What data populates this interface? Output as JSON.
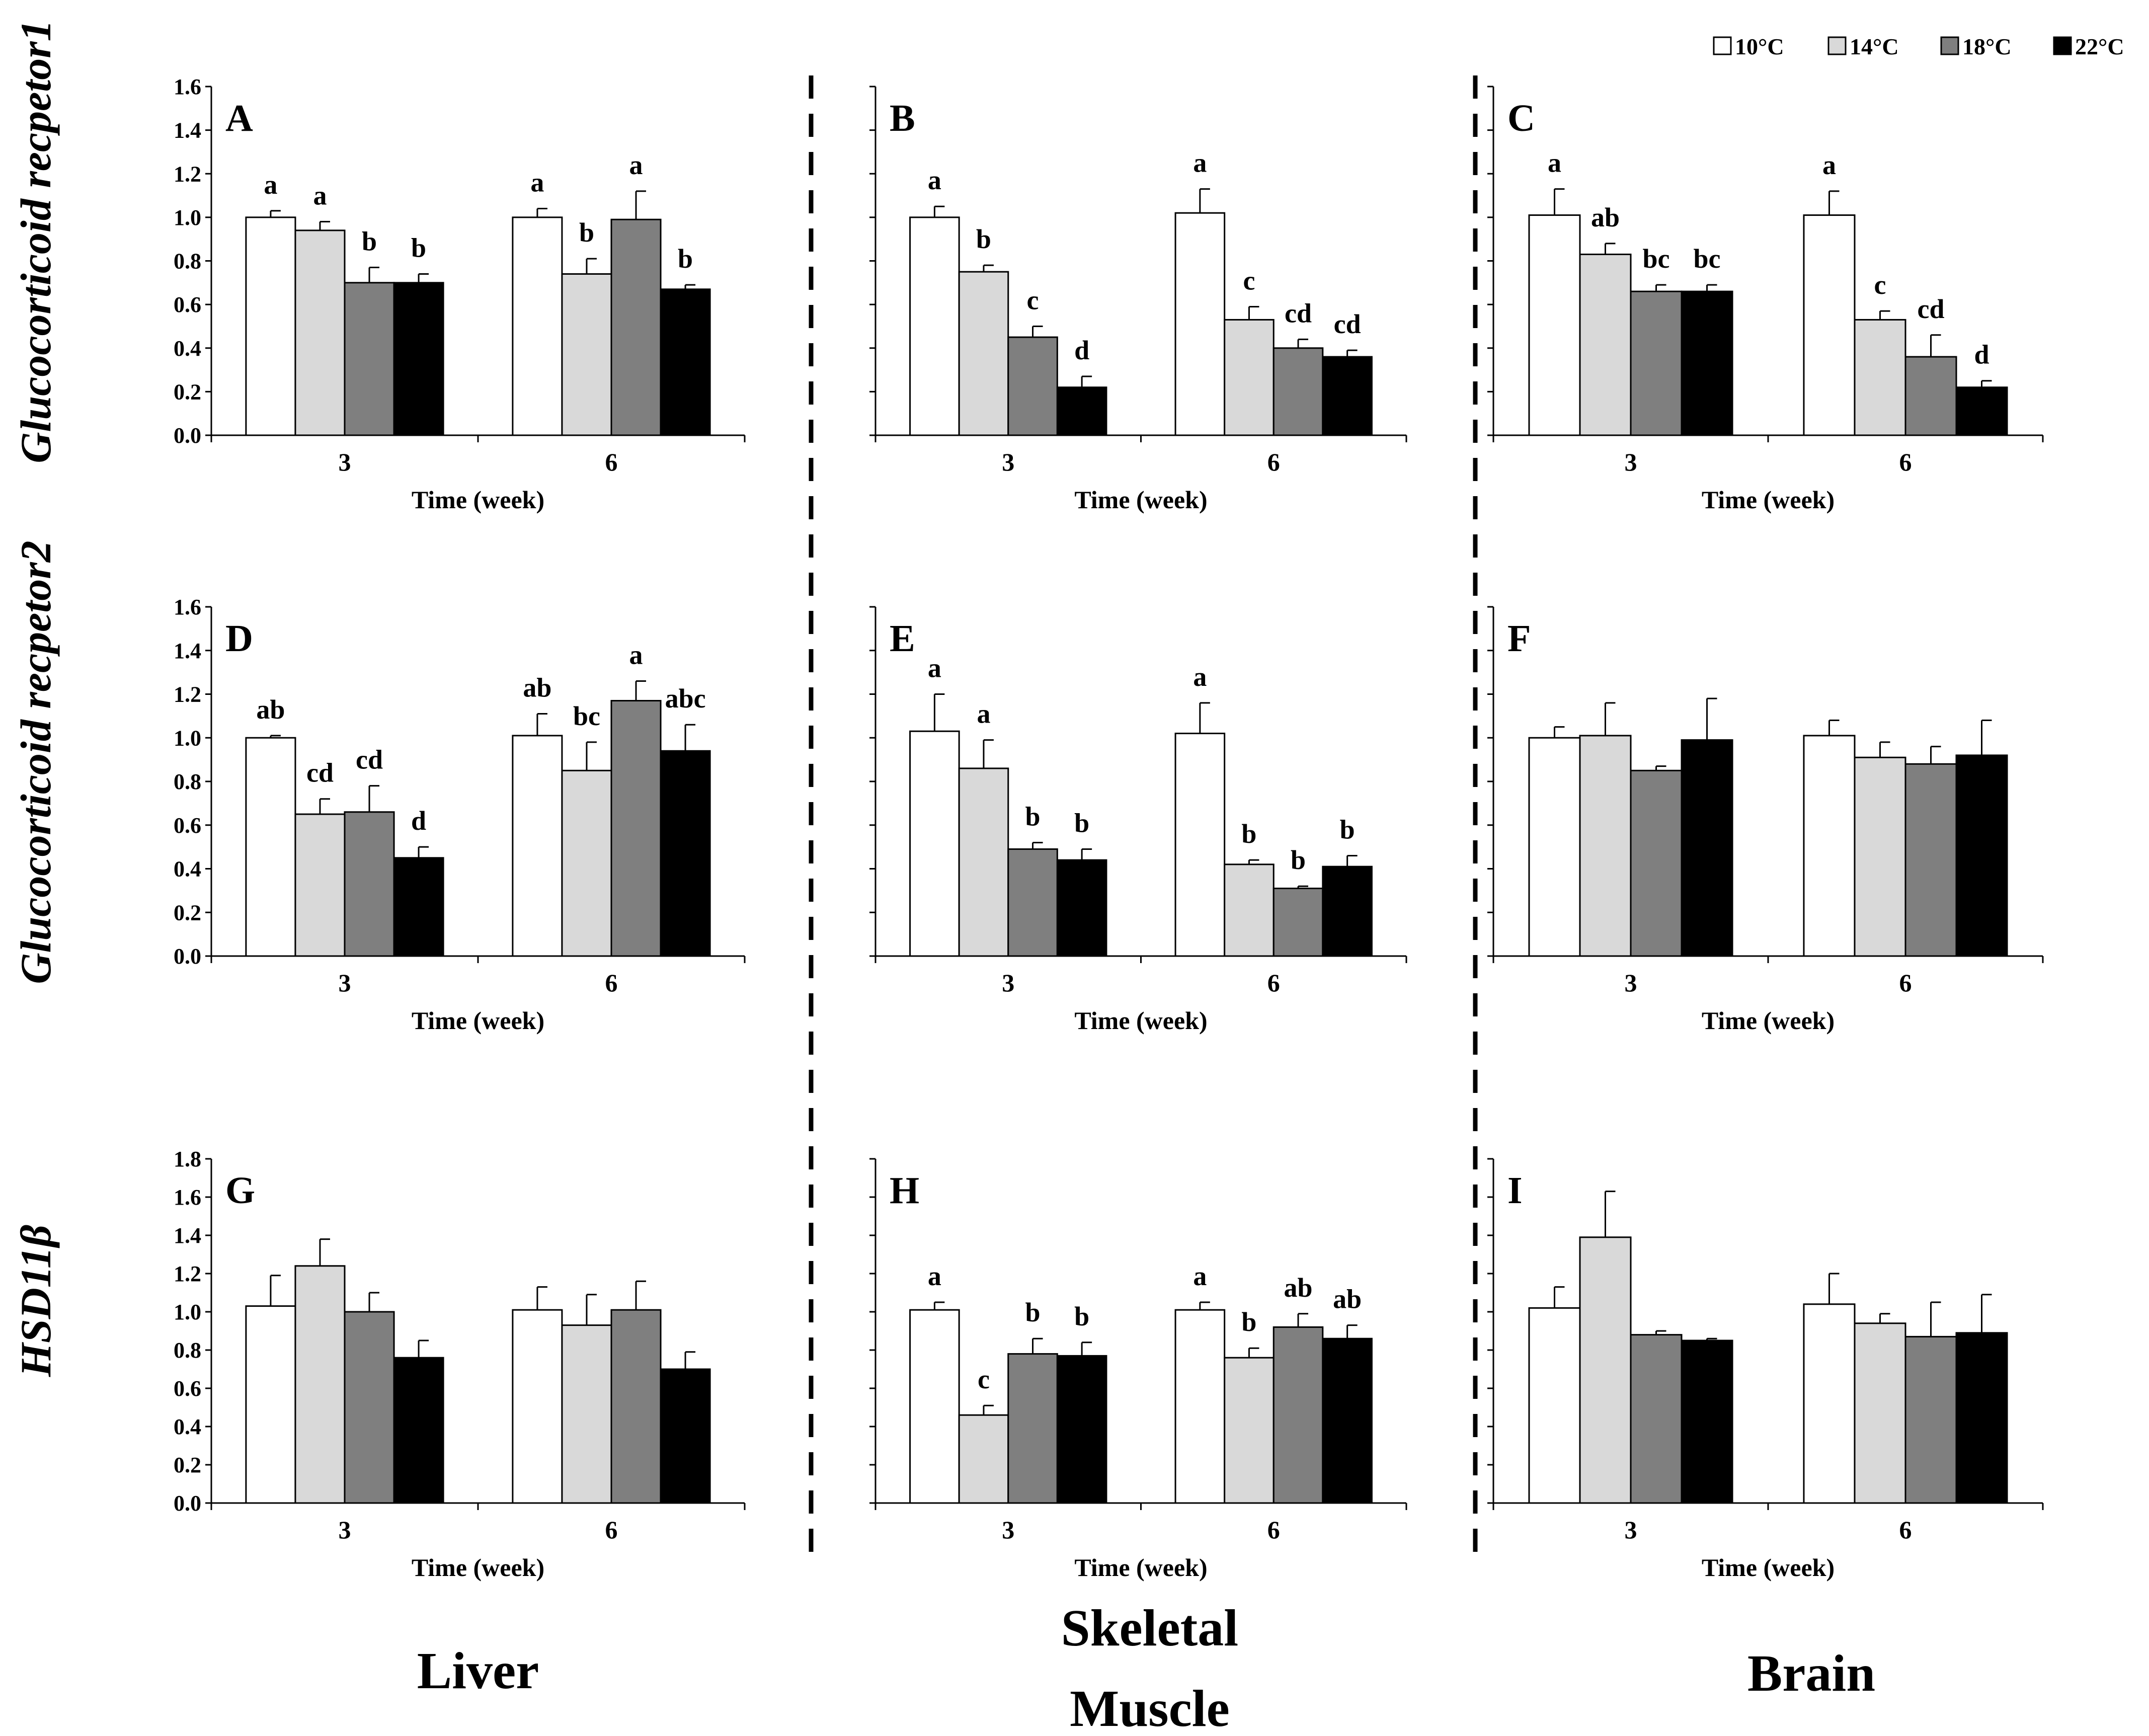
{
  "legend": {
    "items": [
      {
        "label": "10°C",
        "color": "#ffffff"
      },
      {
        "label": "14°C",
        "color": "#d9d9d9"
      },
      {
        "label": "18°C",
        "color": "#7f7f7f"
      },
      {
        "label": "22°C",
        "color": "#000000"
      }
    ]
  },
  "row_labels": [
    "Glucocorticoid recpetor1",
    "Glucocorticoid recpetor2",
    "HSD11β"
  ],
  "tissues": [
    "Liver",
    "Skeletal",
    "Muscle",
    "Brain"
  ],
  "chart_data": [
    {
      "type": "bar",
      "panel": "A",
      "title": "A",
      "xlabel": "Time (week)",
      "ylabel": "Glucocorticoid recpetor1",
      "categories": [
        "3",
        "6"
      ],
      "ylim": [
        0,
        1.6
      ],
      "yticks": [
        "0.0",
        "0.2",
        "0.4",
        "0.6",
        "0.8",
        "1.0",
        "1.2",
        "1.4",
        "1.6"
      ],
      "series": [
        {
          "name": "10°C",
          "values": [
            1.0,
            1.0
          ],
          "errors": [
            0.03,
            0.04
          ],
          "labels": [
            "a",
            "a"
          ]
        },
        {
          "name": "14°C",
          "values": [
            0.94,
            0.74
          ],
          "errors": [
            0.04,
            0.07
          ],
          "labels": [
            "a",
            "b"
          ]
        },
        {
          "name": "18°C",
          "values": [
            0.7,
            0.99
          ],
          "errors": [
            0.07,
            0.13
          ],
          "labels": [
            "b",
            "a"
          ]
        },
        {
          "name": "22°C",
          "values": [
            0.7,
            0.67
          ],
          "errors": [
            0.04,
            0.02
          ],
          "labels": [
            "b",
            "b"
          ]
        }
      ]
    },
    {
      "type": "bar",
      "panel": "B",
      "title": "B",
      "xlabel": "Time (week)",
      "categories": [
        "3",
        "6"
      ],
      "ylim": [
        0,
        1.6
      ],
      "series": [
        {
          "name": "10°C",
          "values": [
            1.0,
            1.02
          ],
          "errors": [
            0.05,
            0.11
          ],
          "labels": [
            "a",
            "a"
          ]
        },
        {
          "name": "14°C",
          "values": [
            0.75,
            0.53
          ],
          "errors": [
            0.03,
            0.06
          ],
          "labels": [
            "b",
            "c"
          ]
        },
        {
          "name": "18°C",
          "values": [
            0.45,
            0.4
          ],
          "errors": [
            0.05,
            0.04
          ],
          "labels": [
            "c",
            "cd"
          ]
        },
        {
          "name": "22°C",
          "values": [
            0.22,
            0.36
          ],
          "errors": [
            0.05,
            0.03
          ],
          "labels": [
            "d",
            "cd"
          ]
        }
      ]
    },
    {
      "type": "bar",
      "panel": "C",
      "title": "C",
      "xlabel": "Time (week)",
      "categories": [
        "3",
        "6"
      ],
      "ylim": [
        0,
        1.6
      ],
      "series": [
        {
          "name": "10°C",
          "values": [
            1.01,
            1.01
          ],
          "errors": [
            0.12,
            0.11
          ],
          "labels": [
            "a",
            "a"
          ]
        },
        {
          "name": "14°C",
          "values": [
            0.83,
            0.53
          ],
          "errors": [
            0.05,
            0.04
          ],
          "labels": [
            "ab",
            "c"
          ]
        },
        {
          "name": "18°C",
          "values": [
            0.66,
            0.36
          ],
          "errors": [
            0.03,
            0.1
          ],
          "labels": [
            "bc",
            "cd"
          ]
        },
        {
          "name": "22°C",
          "values": [
            0.66,
            0.22
          ],
          "errors": [
            0.03,
            0.03
          ],
          "labels": [
            "bc",
            "d"
          ]
        }
      ]
    },
    {
      "type": "bar",
      "panel": "D",
      "title": "D",
      "xlabel": "Time (week)",
      "ylabel": "Glucocorticoid recpetor2",
      "categories": [
        "3",
        "6"
      ],
      "ylim": [
        0,
        1.6
      ],
      "yticks": [
        "0.0",
        "0.2",
        "0.4",
        "0.6",
        "0.8",
        "1.0",
        "1.2",
        "1.4",
        "1.6"
      ],
      "series": [
        {
          "name": "10°C",
          "values": [
            1.0,
            1.01
          ],
          "errors": [
            0.01,
            0.1
          ],
          "labels": [
            "ab",
            "ab"
          ]
        },
        {
          "name": "14°C",
          "values": [
            0.65,
            0.85
          ],
          "errors": [
            0.07,
            0.13
          ],
          "labels": [
            "cd",
            "bc"
          ]
        },
        {
          "name": "18°C",
          "values": [
            0.66,
            1.17
          ],
          "errors": [
            0.12,
            0.09
          ],
          "labels": [
            "cd",
            "a"
          ]
        },
        {
          "name": "22°C",
          "values": [
            0.45,
            0.94
          ],
          "errors": [
            0.05,
            0.12
          ],
          "labels": [
            "d",
            "abc"
          ]
        }
      ]
    },
    {
      "type": "bar",
      "panel": "E",
      "title": "E",
      "xlabel": "Time (week)",
      "categories": [
        "3",
        "6"
      ],
      "ylim": [
        0,
        1.6
      ],
      "series": [
        {
          "name": "10°C",
          "values": [
            1.03,
            1.02
          ],
          "errors": [
            0.17,
            0.14
          ],
          "labels": [
            "a",
            "a"
          ]
        },
        {
          "name": "14°C",
          "values": [
            0.86,
            0.42
          ],
          "errors": [
            0.13,
            0.02
          ],
          "labels": [
            "a",
            "b"
          ]
        },
        {
          "name": "18°C",
          "values": [
            0.49,
            0.31
          ],
          "errors": [
            0.03,
            0.01
          ],
          "labels": [
            "b",
            "b"
          ]
        },
        {
          "name": "22°C",
          "values": [
            0.44,
            0.41
          ],
          "errors": [
            0.05,
            0.05
          ],
          "labels": [
            "b",
            "b"
          ]
        }
      ]
    },
    {
      "type": "bar",
      "panel": "F",
      "title": "F",
      "xlabel": "Time (week)",
      "categories": [
        "3",
        "6"
      ],
      "ylim": [
        0,
        1.6
      ],
      "series": [
        {
          "name": "10°C",
          "values": [
            1.0,
            1.01
          ],
          "errors": [
            0.05,
            0.07
          ],
          "labels": [
            "",
            ""
          ]
        },
        {
          "name": "14°C",
          "values": [
            1.01,
            0.91
          ],
          "errors": [
            0.15,
            0.07
          ],
          "labels": [
            "",
            ""
          ]
        },
        {
          "name": "18°C",
          "values": [
            0.85,
            0.88
          ],
          "errors": [
            0.02,
            0.08
          ],
          "labels": [
            "",
            ""
          ]
        },
        {
          "name": "22°C",
          "values": [
            0.99,
            0.92
          ],
          "errors": [
            0.19,
            0.16
          ],
          "labels": [
            "",
            ""
          ]
        }
      ]
    },
    {
      "type": "bar",
      "panel": "G",
      "title": "G",
      "xlabel": "Time (week)",
      "ylabel": "HSD11β",
      "categories": [
        "3",
        "6"
      ],
      "ylim": [
        0,
        1.8
      ],
      "yticks": [
        "0.0",
        "0.2",
        "0.4",
        "0.6",
        "0.8",
        "1.0",
        "1.2",
        "1.4",
        "1.6",
        "1.8"
      ],
      "series": [
        {
          "name": "10°C",
          "values": [
            1.03,
            1.01
          ],
          "errors": [
            0.16,
            0.12
          ],
          "labels": [
            "",
            ""
          ]
        },
        {
          "name": "14°C",
          "values": [
            1.24,
            0.93
          ],
          "errors": [
            0.14,
            0.16
          ],
          "labels": [
            "",
            ""
          ]
        },
        {
          "name": "18°C",
          "values": [
            1.0,
            1.01
          ],
          "errors": [
            0.1,
            0.15
          ],
          "labels": [
            "",
            ""
          ]
        },
        {
          "name": "22°C",
          "values": [
            0.76,
            0.7
          ],
          "errors": [
            0.09,
            0.09
          ],
          "labels": [
            "",
            ""
          ]
        }
      ]
    },
    {
      "type": "bar",
      "panel": "H",
      "title": "H",
      "xlabel": "Time (week)",
      "categories": [
        "3",
        "6"
      ],
      "ylim": [
        0,
        1.8
      ],
      "series": [
        {
          "name": "10°C",
          "values": [
            1.01,
            1.01
          ],
          "errors": [
            0.04,
            0.04
          ],
          "labels": [
            "a",
            "a"
          ]
        },
        {
          "name": "14°C",
          "values": [
            0.46,
            0.76
          ],
          "errors": [
            0.05,
            0.05
          ],
          "labels": [
            "c",
            "b"
          ]
        },
        {
          "name": "18°C",
          "values": [
            0.78,
            0.92
          ],
          "errors": [
            0.08,
            0.07
          ],
          "labels": [
            "b",
            "ab"
          ]
        },
        {
          "name": "22°C",
          "values": [
            0.77,
            0.86
          ],
          "errors": [
            0.07,
            0.07
          ],
          "labels": [
            "b",
            "ab"
          ]
        }
      ]
    },
    {
      "type": "bar",
      "panel": "I",
      "title": "I",
      "xlabel": "Time (week)",
      "categories": [
        "3",
        "6"
      ],
      "ylim": [
        0,
        1.8
      ],
      "series": [
        {
          "name": "10°C",
          "values": [
            1.02,
            1.04
          ],
          "errors": [
            0.11,
            0.16
          ],
          "labels": [
            "",
            ""
          ]
        },
        {
          "name": "14°C",
          "values": [
            1.39,
            0.94
          ],
          "errors": [
            0.24,
            0.05
          ],
          "labels": [
            "",
            ""
          ]
        },
        {
          "name": "18°C",
          "values": [
            0.88,
            0.87
          ],
          "errors": [
            0.02,
            0.18
          ],
          "labels": [
            "",
            ""
          ]
        },
        {
          "name": "22°C",
          "values": [
            0.85,
            0.89
          ],
          "errors": [
            0.01,
            0.2
          ],
          "labels": [
            "",
            ""
          ]
        }
      ]
    }
  ]
}
